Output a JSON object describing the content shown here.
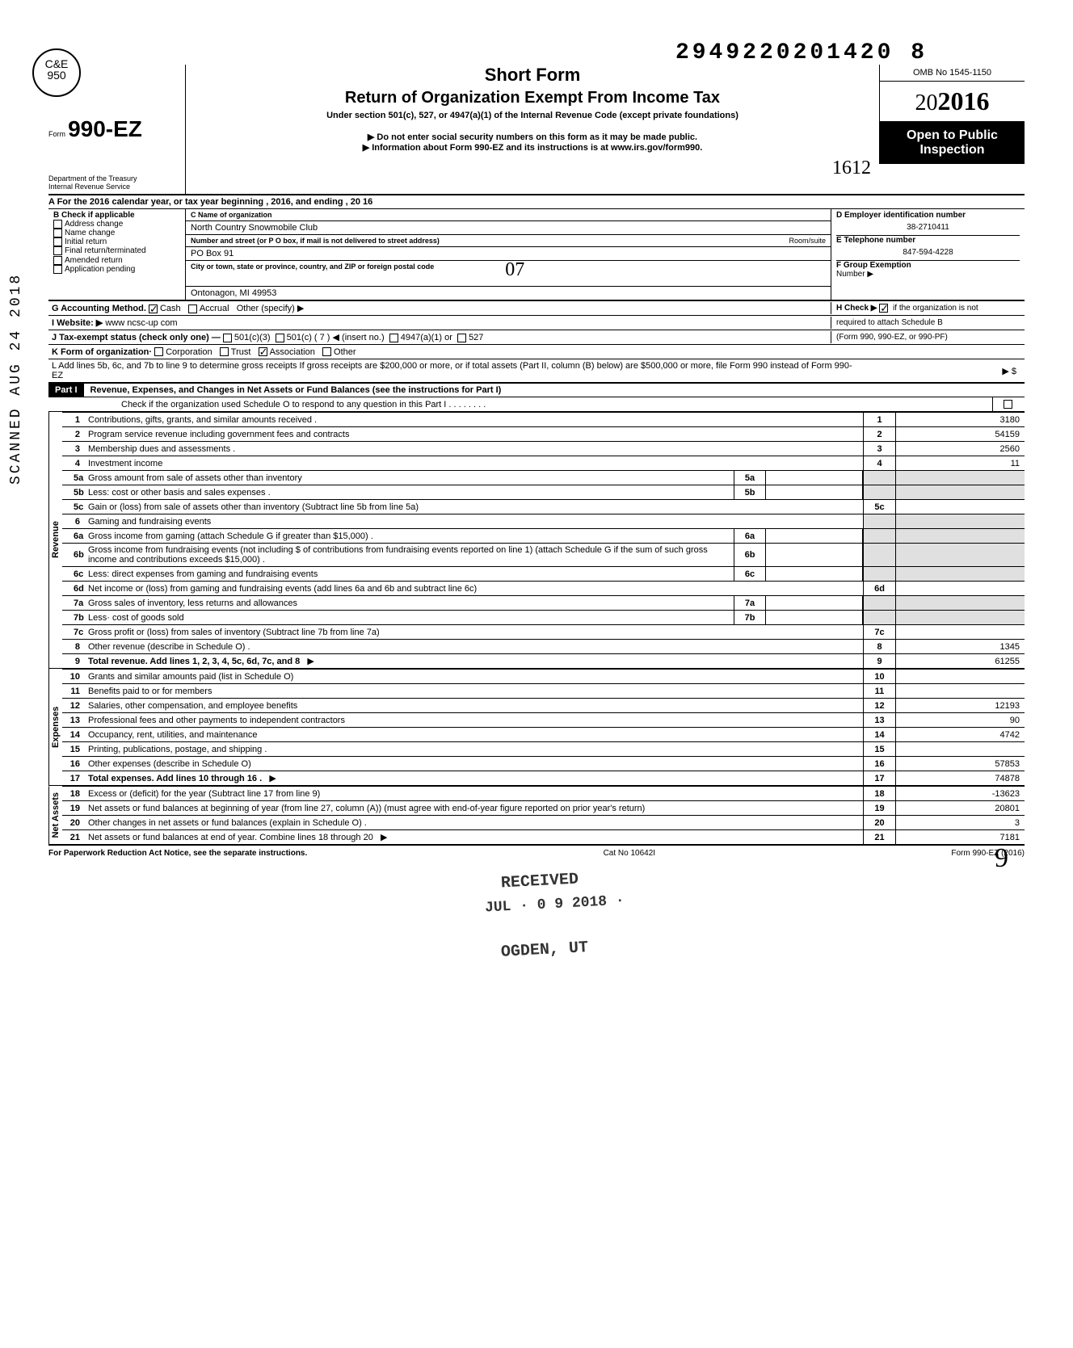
{
  "dln": "2949220201420 8",
  "logo": "C&E\n950",
  "form_no": "990-EZ",
  "form_prefix": "Form",
  "short_form": "Short Form",
  "main_title": "Return of Organization Exempt From Income Tax",
  "subtitle": "Under section 501(c), 527, or 4947(a)(1) of the Internal Revenue Code (except private foundations)",
  "warn1": "Do not enter social security numbers on this form as it may be made public.",
  "warn2": "Information about Form 990-EZ and its instructions is at www.irs.gov/form990.",
  "omb": "OMB No 1545-1150",
  "year": "2016",
  "open_pub1": "Open to Public",
  "open_pub2": "Inspection",
  "dept1": "Department of the Treasury",
  "dept2": "Internal Revenue Service",
  "row_a": "A  For the 2016 calendar year, or tax year beginning                                                           , 2016, and ending                                          , 20      16",
  "b_label": "B  Check if applicable",
  "b_items": [
    "Address change",
    "Name change",
    "Initial return",
    "Final return/terminated",
    "Amended return",
    "Application pending"
  ],
  "c_label": "C  Name of organization",
  "c_name": "North Country Snowmobile Club",
  "c_addr_label": "Number and street (or P O box, if mail is not delivered to street address)",
  "c_room": "Room/suite",
  "c_addr": "PO Box 91",
  "c_city_label": "City or town, state or province, country, and ZIP or foreign postal code",
  "c_city": "Ontonagon, MI 49953",
  "d_label": "D Employer identification number",
  "d_ein": "38-2710411",
  "e_label": "E  Telephone number",
  "e_phone": "847-594-4228",
  "f_label": "F  Group Exemption",
  "f_label2": "Number ▶",
  "g_label": "G  Accounting Method.",
  "g_cash": "Cash",
  "g_accrual": "Accrual",
  "g_other": "Other (specify) ▶",
  "h_label": "H  Check ▶",
  "h_text1": "if the organization is not",
  "h_text2": "required to attach Schedule B",
  "h_text3": "(Form 990, 990-EZ, or 990-PF)",
  "i_label": "I  Website: ▶",
  "i_site": "www ncsc-up com",
  "j_label": "J  Tax-exempt status (check only one) —",
  "j_501c3": "501(c)(3)",
  "j_501c": "501(c) (  7  ) ◀ (insert no.)",
  "j_4947": "4947(a)(1) or",
  "j_527": "527",
  "k_label": "K  Form of organization·",
  "k_corp": "Corporation",
  "k_trust": "Trust",
  "k_assoc": "Association",
  "k_other": "Other",
  "l_text": "L  Add lines 5b, 6c, and 7b to line 9 to determine gross receipts If gross receipts are $200,000 or more, or if total assets (Part II, column (B) below) are $500,000 or more, file Form 990 instead of Form 990-EZ",
  "l_arrow": "▶   $",
  "part1": "Part I",
  "part1_title": "Revenue, Expenses, and Changes in Net Assets or Fund Balances (see the instructions for Part I)",
  "part1_check": "Check if the organization used Schedule O to respond to any question in this Part I  .   .   .   .   .   .   .   .",
  "side_rev": "Revenue",
  "side_exp": "Expenses",
  "side_net": "Net Assets",
  "lines": {
    "1": {
      "t": "Contributions, gifts, grants, and similar amounts received .",
      "n": "1",
      "a": "3180"
    },
    "2": {
      "t": "Program service revenue including government fees and contracts",
      "n": "2",
      "a": "54159"
    },
    "3": {
      "t": "Membership dues and assessments .",
      "n": "3",
      "a": "2560"
    },
    "4": {
      "t": "Investment income",
      "n": "4",
      "a": "11"
    },
    "5a": {
      "t": "Gross amount from sale of assets other than inventory",
      "m": "5a"
    },
    "5b": {
      "t": "Less: cost or other basis and sales expenses .",
      "m": "5b"
    },
    "5c": {
      "t": "Gain or (loss) from sale of assets other than inventory (Subtract line 5b from line 5a)",
      "n": "5c",
      "a": ""
    },
    "6": {
      "t": "Gaming and fundraising events"
    },
    "6a": {
      "t": "Gross income from gaming (attach Schedule G if greater than $15,000) .",
      "m": "6a"
    },
    "6b": {
      "t": "Gross income from fundraising events (not including  $                          of contributions from fundraising events reported on line 1) (attach Schedule G if the sum of such gross income and contributions exceeds $15,000) .",
      "m": "6b"
    },
    "6c": {
      "t": "Less: direct expenses from gaming and fundraising events",
      "m": "6c"
    },
    "6d": {
      "t": "Net income or (loss) from gaming and fundraising events (add lines 6a and 6b and subtract line 6c)",
      "n": "6d",
      "a": ""
    },
    "7a": {
      "t": "Gross sales of inventory, less returns and allowances",
      "m": "7a"
    },
    "7b": {
      "t": "Less· cost of goods sold",
      "m": "7b"
    },
    "7c": {
      "t": "Gross profit or (loss) from sales of inventory (Subtract line 7b from line 7a)",
      "n": "7c",
      "a": ""
    },
    "8": {
      "t": "Other revenue (describe in Schedule O) .",
      "n": "8",
      "a": "1345"
    },
    "9": {
      "t": "Total revenue. Add lines 1, 2, 3, 4, 5c, 6d, 7c, and 8",
      "n": "9",
      "a": "61255",
      "bold": true,
      "arr": true
    },
    "10": {
      "t": "Grants and similar amounts paid (list in Schedule O)",
      "n": "10",
      "a": ""
    },
    "11": {
      "t": "Benefits paid to or for members",
      "n": "11",
      "a": ""
    },
    "12": {
      "t": "Salaries, other compensation, and employee benefits",
      "n": "12",
      "a": "12193"
    },
    "13": {
      "t": "Professional fees and other payments to independent contractors",
      "n": "13",
      "a": "90"
    },
    "14": {
      "t": "Occupancy, rent, utilities, and maintenance",
      "n": "14",
      "a": "4742"
    },
    "15": {
      "t": "Printing, publications, postage, and shipping .",
      "n": "15",
      "a": ""
    },
    "16": {
      "t": "Other expenses (describe in Schedule O)",
      "n": "16",
      "a": "57853"
    },
    "17": {
      "t": "Total expenses. Add lines 10 through 16 .",
      "n": "17",
      "a": "74878",
      "bold": true,
      "arr": true
    },
    "18": {
      "t": "Excess or (deficit) for the year (Subtract line 17 from line 9)",
      "n": "18",
      "a": "-13623"
    },
    "19": {
      "t": "Net assets or fund balances at beginning of year (from line 27, column (A)) (must agree with end-of-year figure reported on prior year's return)",
      "n": "19",
      "a": "20801"
    },
    "20": {
      "t": "Other changes in net assets or fund balances (explain in Schedule O) .",
      "n": "20",
      "a": "3"
    },
    "21": {
      "t": "Net assets or fund balances at end of year. Combine lines 18 through 20",
      "n": "21",
      "a": "7181",
      "arr": true
    }
  },
  "footer_left": "For Paperwork Reduction Act Notice, see the separate instructions.",
  "footer_mid": "Cat No  10642I",
  "footer_right": "Form 990-EZ (2016)",
  "scanned": "SCANNED AUG 24 2018",
  "stamp_rec": "RECEIVED",
  "stamp_date": "JUL · 0 9 2018 ·",
  "stamp_ogden": "OGDEN, UT",
  "hand_07": "07",
  "hand_1612": "1612",
  "hand_9": "9",
  "colors": {
    "bg": "#ffffff",
    "fg": "#000000",
    "shade": "#e0e0e0"
  }
}
